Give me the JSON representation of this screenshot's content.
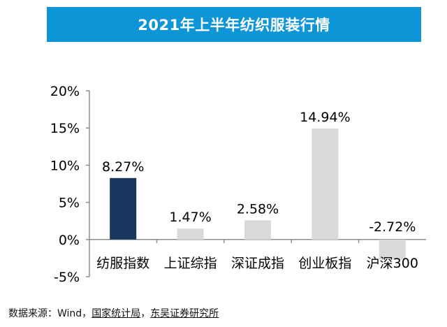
{
  "title": "2021年上半年纺织服装行情",
  "source": {
    "prefix": "数据来源：Wind，",
    "part1": "国家统计局",
    "sep": "，",
    "part2": "东吴证券研究所"
  },
  "colors": {
    "title_bg": "#0e95d8",
    "highlight": "#17375e",
    "default": "#d9d9d9"
  },
  "chart_data": {
    "type": "bar",
    "title": "2021年上半年纺织服装行情",
    "categories": [
      "纺服指数",
      "上证综指",
      "深证成指",
      "创业板指",
      "沪深300"
    ],
    "values": [
      8.27,
      1.47,
      2.58,
      14.94,
      -2.72
    ],
    "value_labels": [
      "8.27%",
      "1.47%",
      "2.58%",
      "14.94%",
      "-2.72%"
    ],
    "highlight_index": 0,
    "ylim": [
      -5,
      20
    ],
    "yticks": [
      -5,
      0,
      5,
      10,
      15,
      20
    ],
    "ytick_labels": [
      "-5%",
      "0%",
      "5%",
      "10%",
      "15%",
      "20%"
    ],
    "grid": false,
    "legend": "none",
    "xlabel": "",
    "ylabel": ""
  }
}
